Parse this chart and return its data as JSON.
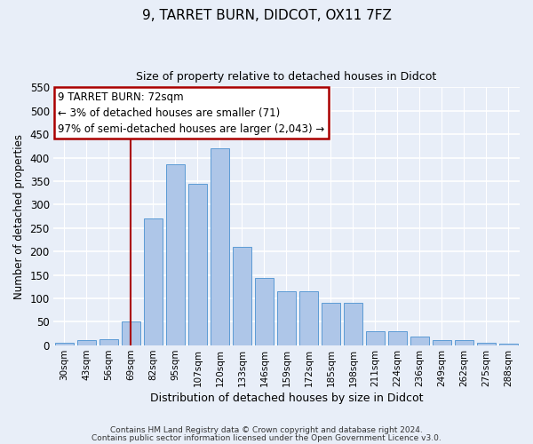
{
  "title1": "9, TARRET BURN, DIDCOT, OX11 7FZ",
  "title2": "Size of property relative to detached houses in Didcot",
  "xlabel": "Distribution of detached houses by size in Didcot",
  "ylabel": "Number of detached properties",
  "categories": [
    "30sqm",
    "43sqm",
    "56sqm",
    "69sqm",
    "82sqm",
    "95sqm",
    "107sqm",
    "120sqm",
    "133sqm",
    "146sqm",
    "159sqm",
    "172sqm",
    "185sqm",
    "198sqm",
    "211sqm",
    "224sqm",
    "236sqm",
    "249sqm",
    "262sqm",
    "275sqm",
    "288sqm"
  ],
  "values": [
    5,
    10,
    13,
    50,
    270,
    385,
    345,
    420,
    210,
    143,
    115,
    115,
    90,
    90,
    30,
    30,
    18,
    10,
    10,
    5,
    3
  ],
  "bar_color": "#aec6e8",
  "bar_edge_color": "#5b9bd5",
  "highlight_bar_index": 3,
  "highlight_line_color": "#aa0000",
  "ylim": [
    0,
    550
  ],
  "yticks": [
    0,
    50,
    100,
    150,
    200,
    250,
    300,
    350,
    400,
    450,
    500,
    550
  ],
  "annotation_text": "9 TARRET BURN: 72sqm\n← 3% of detached houses are smaller (71)\n97% of semi-detached houses are larger (2,043) →",
  "annotation_box_color": "#ffffff",
  "annotation_box_edge": "#aa0000",
  "footer1": "Contains HM Land Registry data © Crown copyright and database right 2024.",
  "footer2": "Contains public sector information licensed under the Open Government Licence v3.0.",
  "background_color": "#e8eef8",
  "plot_bg_color": "#e8eef8"
}
